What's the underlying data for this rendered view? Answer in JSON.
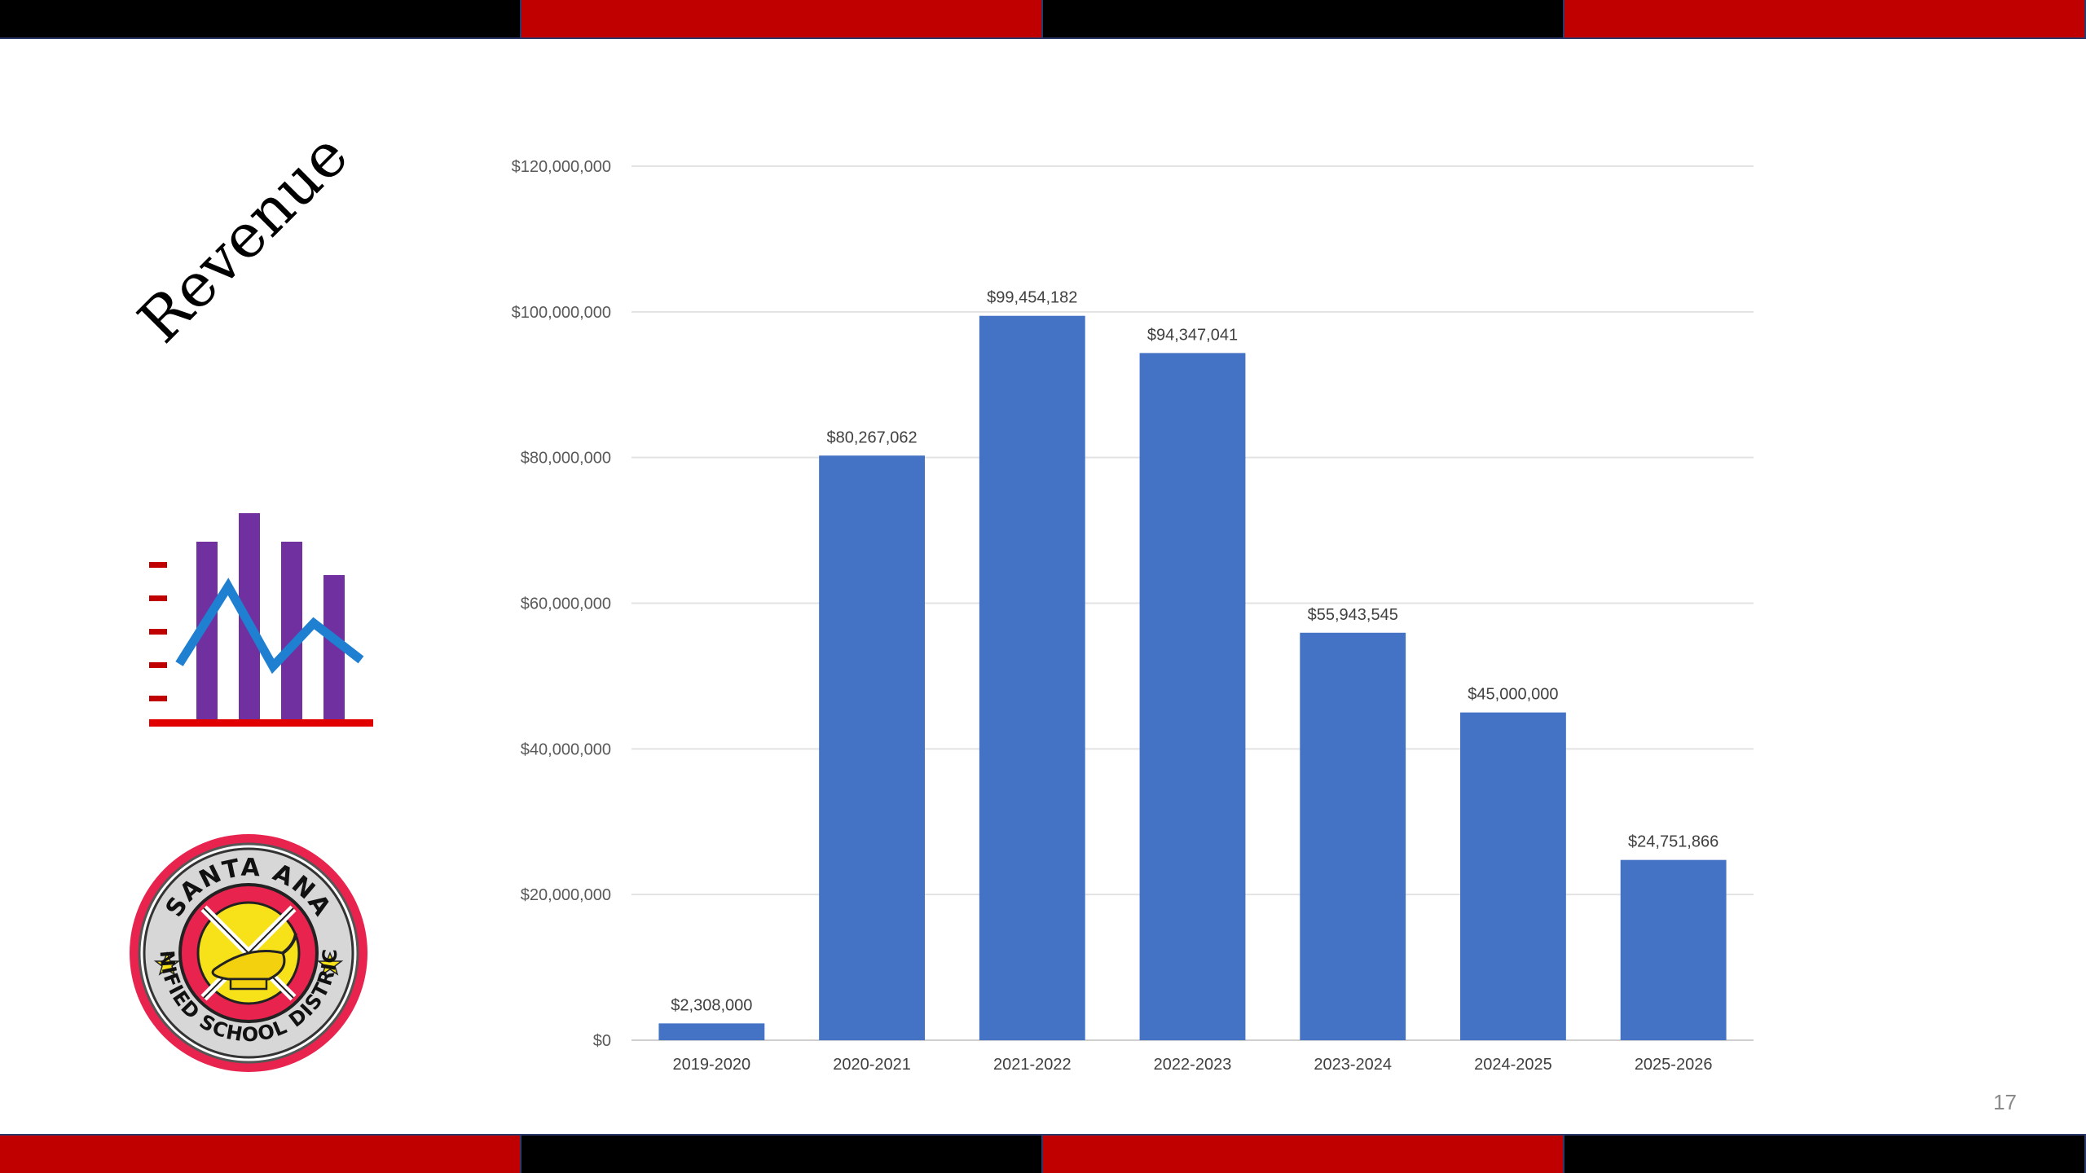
{
  "slide": {
    "title": "Revenue",
    "page_number": "17"
  },
  "stripes": {
    "top": [
      "#000000",
      "#c00000",
      "#000000",
      "#c00000"
    ],
    "bottom": [
      "#c00000",
      "#000000",
      "#c00000",
      "#000000"
    ]
  },
  "icons": {
    "chart_icon": "bar-and-line-chart-icon",
    "seal": "santa-ana-usd-seal"
  },
  "seal": {
    "top_text": "SANTA ANA",
    "bottom_text": "UNIFIED SCHOOL DISTRICT"
  },
  "colors": {
    "bar": "#4472c4",
    "accent_red": "#c00000",
    "icon_purple": "#7030a0",
    "icon_blue": "#1f7fd1",
    "seal_pink": "#e8234e"
  },
  "chart_data": {
    "type": "bar",
    "categories": [
      "2019-2020",
      "2020-2021",
      "2021-2022",
      "2022-2023",
      "2023-2024",
      "2024-2025",
      "2025-2026"
    ],
    "values": [
      2308000,
      80267062,
      99454182,
      94347041,
      55943545,
      45000000,
      24751866
    ],
    "data_labels": [
      "$2,308,000",
      "$80,267,062",
      "$99,454,182",
      "$94,347,041",
      "$55,943,545",
      "$45,000,000",
      "$24,751,866"
    ],
    "ylim": [
      0,
      120000000
    ],
    "yticks": [
      0,
      20000000,
      40000000,
      60000000,
      80000000,
      100000000,
      120000000
    ],
    "ytick_labels": [
      "$0",
      "$20,000,000",
      "$40,000,000",
      "$60,000,000",
      "$80,000,000",
      "$100,000,000",
      "$120,000,000"
    ],
    "grid": true,
    "legend": "none"
  }
}
